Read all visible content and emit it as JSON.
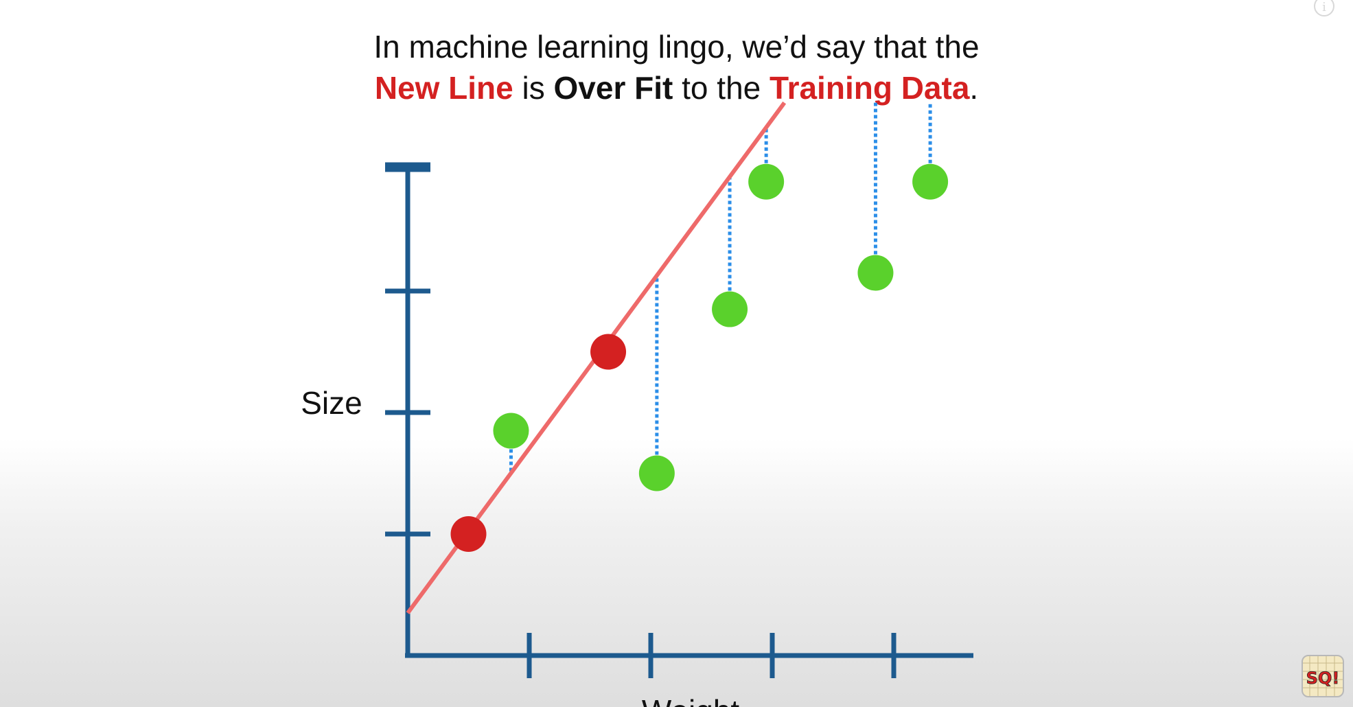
{
  "caption": {
    "line1": "In machine learning lingo, we’d say that the",
    "line2_part1": "New Line",
    "line2_part2": " is ",
    "line2_part3": "Over Fit",
    "line2_part4": " to the ",
    "line2_part5": "Training Data",
    "line2_part6": "."
  },
  "logo": {
    "text": "SQ!"
  },
  "chart_data": {
    "type": "scatter",
    "xlabel": "Weight",
    "ylabel": "Size",
    "xlim": [
      0,
      4.6
    ],
    "ylim": [
      0,
      4.5
    ],
    "grid": false,
    "series": [
      {
        "color": "#d42121",
        "points": [
          [
            0.5,
            1.0
          ],
          [
            1.65,
            2.5
          ]
        ]
      },
      {
        "color": "#5ad12c",
        "points": [
          [
            0.85,
            1.85
          ],
          [
            2.05,
            1.5
          ],
          [
            2.65,
            2.85
          ],
          [
            2.95,
            3.9
          ],
          [
            3.85,
            3.15
          ],
          [
            4.3,
            3.9
          ]
        ]
      }
    ],
    "fit_line": {
      "color": "#ee6a6a",
      "x": [
        0.0,
        3.1
      ],
      "y": [
        0.35,
        4.55
      ]
    },
    "residual_color": "#2b8ee8"
  }
}
